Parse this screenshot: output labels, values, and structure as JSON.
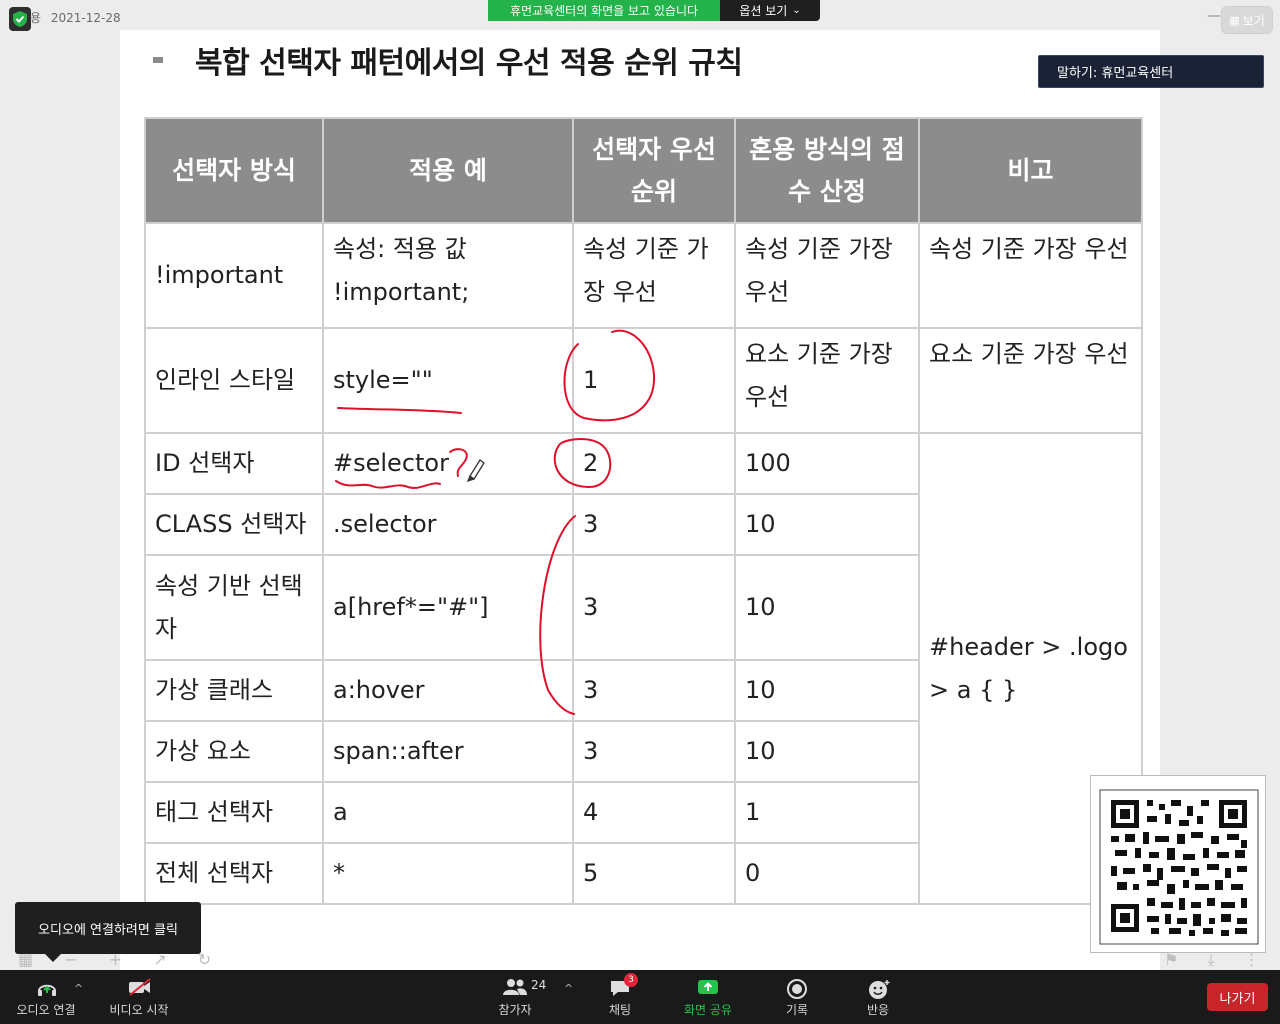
{
  "topbar": {
    "left_label": "용",
    "date": "2021-12-28",
    "share_banner": "휴먼교육센터의 화면을 보고 있습니다",
    "options_button": "옵션 보기",
    "view_button": "보기",
    "speaking": "말하기: 휴먼교육센터"
  },
  "slide": {
    "title": "복합 선택자 패턴에서의 우선 적용 순위 규칙",
    "table": {
      "headers": [
        "선택자 방식",
        "적용 예",
        "선택자 우선 순위",
        "혼용 방식의 점 수 산정",
        "비고"
      ],
      "rows": [
        {
          "method": "!important",
          "example": "속성: 적용 값 !important;",
          "priority": "속성 기준 가장 우선",
          "score": "속성 기준 가장 우선",
          "note": "속성 기준 가장 우선"
        },
        {
          "method": "인라인 스타일",
          "example": "style=\"\"",
          "priority": "1",
          "score": "요소 기준 가장 우선",
          "note": "요소 기준 가장 우선"
        },
        {
          "method": "ID 선택자",
          "example": "#selector",
          "priority": "2",
          "score": "100"
        },
        {
          "method": "CLASS 선택자",
          "example": ".selector",
          "priority": "3",
          "score": "10"
        },
        {
          "method": "속성 기반 선택자",
          "example": "a[href*=\"#\"]",
          "priority": "3",
          "score": "10"
        },
        {
          "method": "가상 클래스",
          "example": "a:hover",
          "priority": "3",
          "score": "10"
        },
        {
          "method": "가상 요소",
          "example": "span::after",
          "priority": "3",
          "score": "10"
        },
        {
          "method": "태그 선택자",
          "example": "a",
          "priority": "4",
          "score": "1"
        },
        {
          "method": "전체 선택자",
          "example": "*",
          "priority": "5",
          "score": "0"
        }
      ],
      "merged_note": "#header > .logo > a { }"
    }
  },
  "tooltip": {
    "audio": "오디오에 연결하려면 클릭"
  },
  "toolbar": {
    "audio": "오디오 연결",
    "video": "비디오 시작",
    "participants": "참가자",
    "participants_count": "24",
    "chat": "채팅",
    "chat_badge": "3",
    "share": "화면 공유",
    "record": "기록",
    "reactions": "반응",
    "leave": "나가기"
  },
  "colors": {
    "share_green": "#23b34a",
    "header_gray": "#8c8c8c",
    "annotation_red": "#e0102a",
    "leave_red": "#c8242a"
  }
}
